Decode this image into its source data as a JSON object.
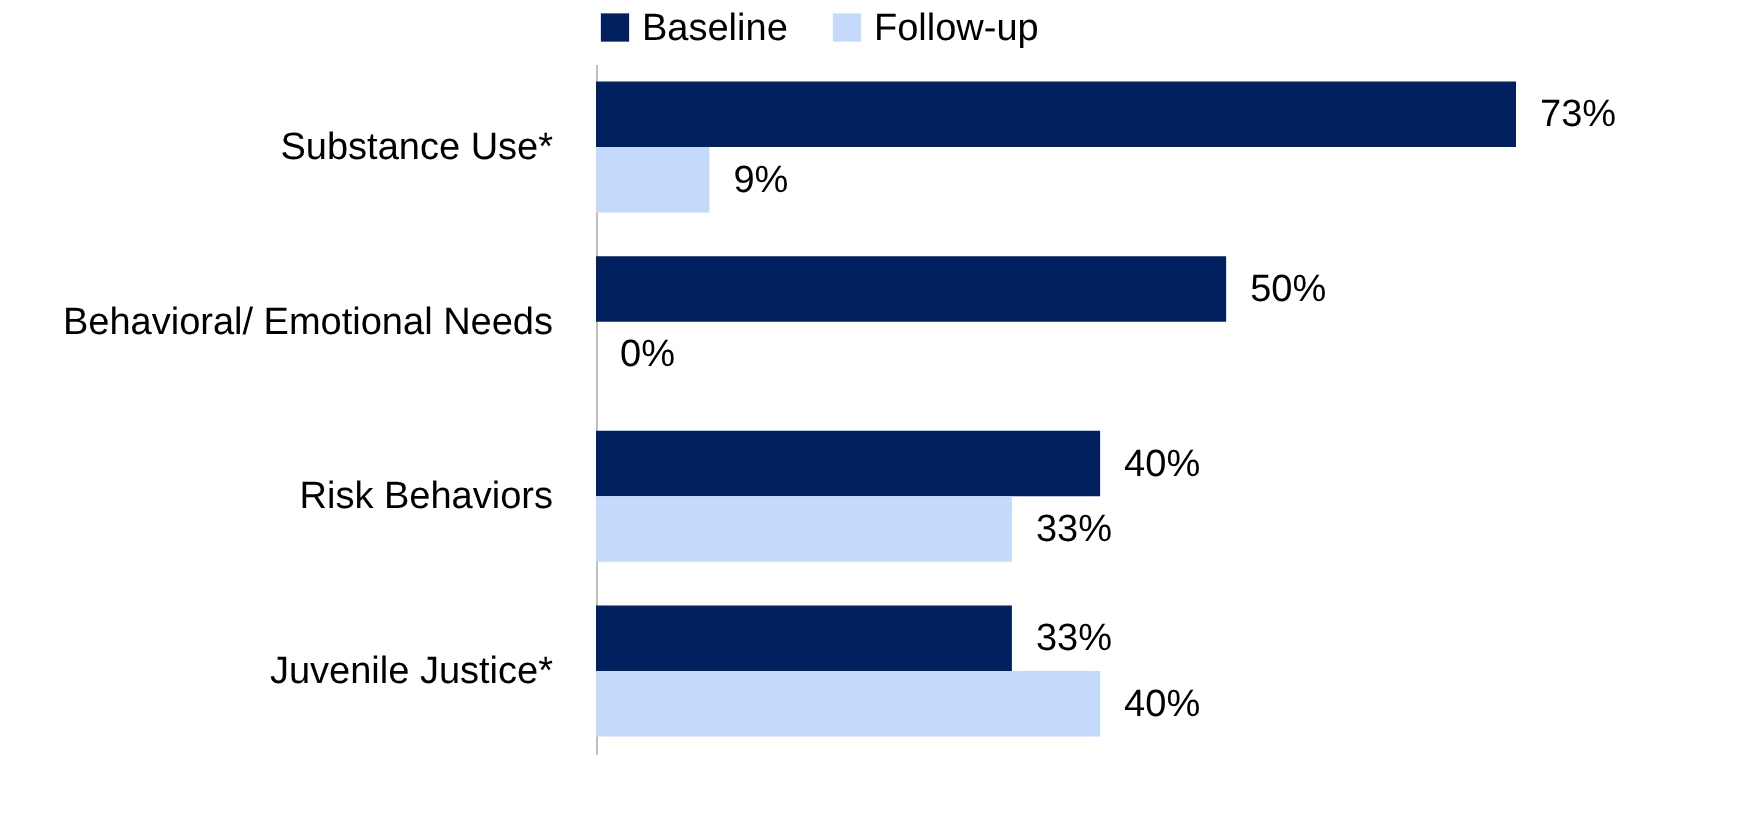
{
  "chart_data": {
    "type": "bar",
    "orientation": "horizontal",
    "categories": [
      "Substance Use*",
      "Behavioral/ Emotional Needs",
      "Risk Behaviors",
      "Juvenile Justice*"
    ],
    "series": [
      {
        "name": "Baseline",
        "color": "#002060",
        "values": [
          73,
          50,
          40,
          33
        ],
        "value_labels": [
          "73%",
          "50%",
          "40%",
          "33%"
        ]
      },
      {
        "name": "Follow-up",
        "color": "#c5d9fa",
        "values": [
          9,
          0,
          33,
          40
        ],
        "value_labels": [
          "9%",
          "0%",
          "33%",
          "40%"
        ]
      }
    ],
    "legend": "top",
    "grid": false
  }
}
